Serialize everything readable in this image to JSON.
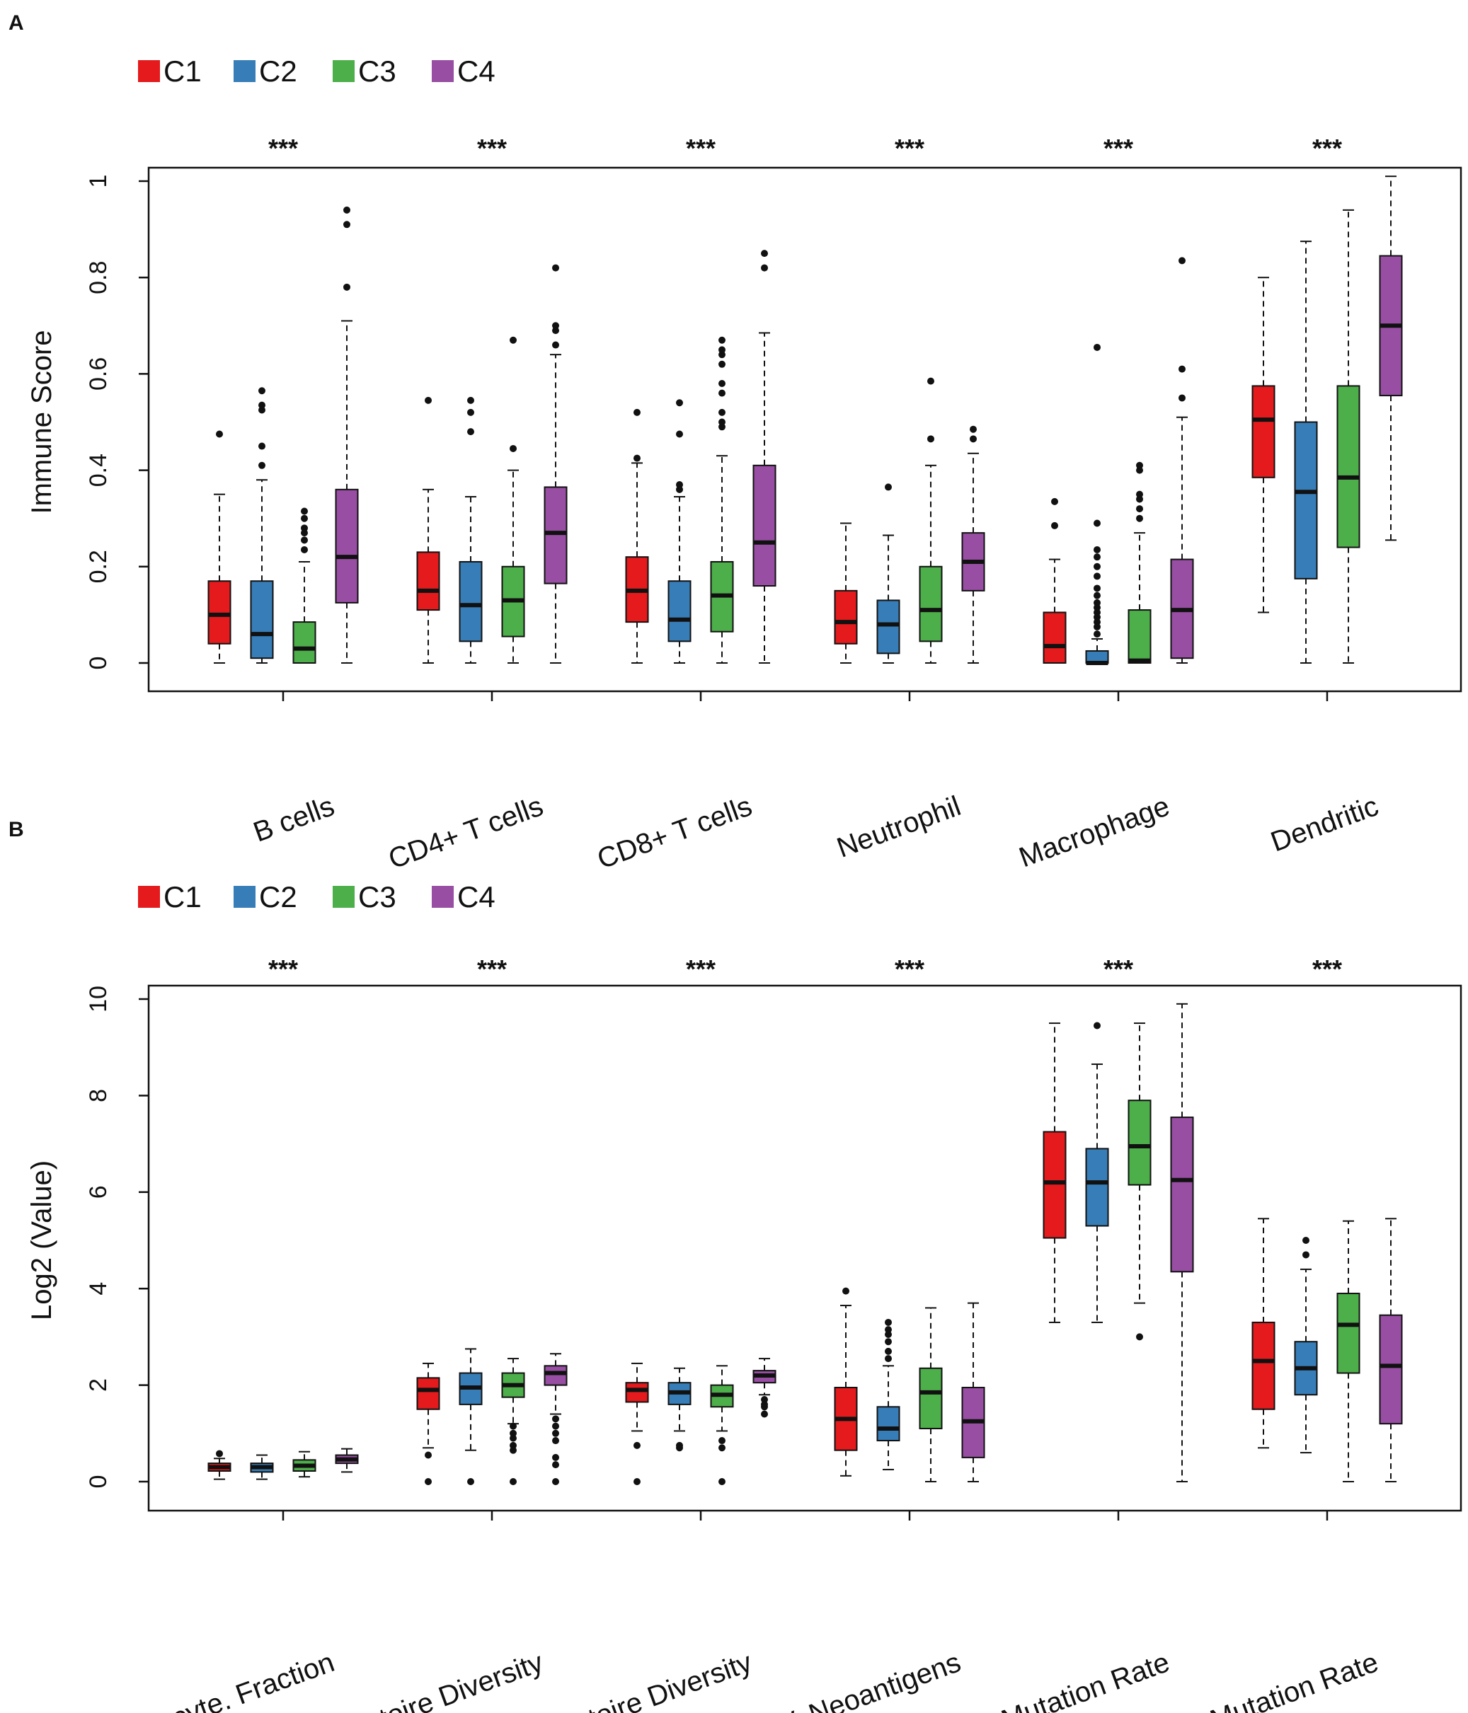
{
  "colors": {
    "C1": "#e41a1c",
    "C2": "#377eb8",
    "C3": "#4daf4a",
    "C4": "#984ea3"
  },
  "chart_data": [
    {
      "type": "box",
      "panel": "A",
      "ylabel": "Immune Score",
      "ylim": [
        0,
        1
      ],
      "yticks": [
        "0",
        "0.2",
        "0.4",
        "0.6",
        "0.8",
        "1"
      ],
      "ytick_values": [
        0,
        0.2,
        0.4,
        0.6,
        0.8,
        1
      ],
      "legend": [
        "C1",
        "C2",
        "C3",
        "C4"
      ],
      "categories": [
        "B cells",
        "CD4+ T cells",
        "CD8+ T cells",
        "Neutrophil",
        "Macrophage",
        "Dendritic"
      ],
      "significance": [
        "***",
        "***",
        "***",
        "***",
        "***",
        "***"
      ],
      "series": [
        {
          "name": "C1",
          "boxes": [
            {
              "min": 0,
              "q1": 0.04,
              "median": 0.1,
              "q3": 0.17,
              "max": 0.35,
              "outliers": [
                0.475
              ]
            },
            {
              "min": 0,
              "q1": 0.11,
              "median": 0.15,
              "q3": 0.23,
              "max": 0.36,
              "outliers": [
                0.545
              ]
            },
            {
              "min": 0,
              "q1": 0.085,
              "median": 0.15,
              "q3": 0.22,
              "max": 0.415,
              "outliers": [
                0.425,
                0.52
              ]
            },
            {
              "min": 0,
              "q1": 0.04,
              "median": 0.085,
              "q3": 0.15,
              "max": 0.29,
              "outliers": []
            },
            {
              "min": 0,
              "q1": 0,
              "median": 0.035,
              "q3": 0.105,
              "max": 0.215,
              "outliers": [
                0.285,
                0.335
              ]
            },
            {
              "min": 0.105,
              "q1": 0.385,
              "median": 0.505,
              "q3": 0.575,
              "max": 0.8,
              "outliers": []
            }
          ]
        },
        {
          "name": "C2",
          "boxes": [
            {
              "min": 0,
              "q1": 0.01,
              "median": 0.06,
              "q3": 0.17,
              "max": 0.38,
              "outliers": [
                0.41,
                0.45,
                0.525,
                0.535,
                0.565
              ]
            },
            {
              "min": 0,
              "q1": 0.045,
              "median": 0.12,
              "q3": 0.21,
              "max": 0.345,
              "outliers": [
                0.48,
                0.52,
                0.545
              ]
            },
            {
              "min": 0,
              "q1": 0.045,
              "median": 0.09,
              "q3": 0.17,
              "max": 0.345,
              "outliers": [
                0.36,
                0.37,
                0.475,
                0.54
              ]
            },
            {
              "min": 0,
              "q1": 0.02,
              "median": 0.08,
              "q3": 0.13,
              "max": 0.265,
              "outliers": [
                0.365
              ]
            },
            {
              "min": 0,
              "q1": 0,
              "median": 0,
              "q3": 0.025,
              "max": 0.05,
              "outliers": [
                0.06,
                0.075,
                0.085,
                0.095,
                0.105,
                0.115,
                0.125,
                0.14,
                0.155,
                0.18,
                0.2,
                0.22,
                0.235,
                0.29,
                0.655
              ]
            },
            {
              "min": 0,
              "q1": 0.175,
              "median": 0.355,
              "q3": 0.5,
              "max": 0.875,
              "outliers": []
            }
          ]
        },
        {
          "name": "C3",
          "boxes": [
            {
              "min": 0,
              "q1": 0,
              "median": 0.03,
              "q3": 0.085,
              "max": 0.21,
              "outliers": [
                0.235,
                0.255,
                0.27,
                0.28,
                0.3,
                0.315
              ]
            },
            {
              "min": 0,
              "q1": 0.055,
              "median": 0.13,
              "q3": 0.2,
              "max": 0.4,
              "outliers": [
                0.445,
                0.67
              ]
            },
            {
              "min": 0,
              "q1": 0.065,
              "median": 0.14,
              "q3": 0.21,
              "max": 0.43,
              "outliers": [
                0.49,
                0.5,
                0.52,
                0.56,
                0.58,
                0.62,
                0.64,
                0.65,
                0.67
              ]
            },
            {
              "min": 0,
              "q1": 0.045,
              "median": 0.11,
              "q3": 0.2,
              "max": 0.41,
              "outliers": [
                0.465,
                0.585
              ]
            },
            {
              "min": 0,
              "q1": 0,
              "median": 0.005,
              "q3": 0.11,
              "max": 0.27,
              "outliers": [
                0.3,
                0.32,
                0.34,
                0.35,
                0.4,
                0.41
              ]
            },
            {
              "min": 0,
              "q1": 0.24,
              "median": 0.385,
              "q3": 0.575,
              "max": 0.94,
              "outliers": []
            }
          ]
        },
        {
          "name": "C4",
          "boxes": [
            {
              "min": 0,
              "q1": 0.125,
              "median": 0.22,
              "q3": 0.36,
              "max": 0.71,
              "outliers": [
                0.78,
                0.91,
                0.94
              ]
            },
            {
              "min": 0,
              "q1": 0.165,
              "median": 0.27,
              "q3": 0.365,
              "max": 0.64,
              "outliers": [
                0.66,
                0.69,
                0.7,
                0.82
              ]
            },
            {
              "min": 0,
              "q1": 0.16,
              "median": 0.25,
              "q3": 0.41,
              "max": 0.685,
              "outliers": [
                0.82,
                0.85
              ]
            },
            {
              "min": 0,
              "q1": 0.15,
              "median": 0.21,
              "q3": 0.27,
              "max": 0.435,
              "outliers": [
                0.465,
                0.485
              ]
            },
            {
              "min": 0,
              "q1": 0.01,
              "median": 0.11,
              "q3": 0.215,
              "max": 0.51,
              "outliers": [
                0.55,
                0.61,
                0.835
              ]
            },
            {
              "min": 0.255,
              "q1": 0.555,
              "median": 0.7,
              "q3": 0.845,
              "max": 1.01,
              "outliers": []
            }
          ]
        }
      ]
    },
    {
      "type": "box",
      "panel": "B",
      "ylabel": "Log2 (Value)",
      "ylim": [
        0,
        10
      ],
      "yticks": [
        "0",
        "2",
        "4",
        "6",
        "8",
        "10"
      ],
      "ytick_values": [
        0,
        2,
        4,
        6,
        8,
        10
      ],
      "legend": [
        "C1",
        "C2",
        "C3",
        "C4"
      ],
      "categories": [
        "Leukocyte. Fraction",
        "BCR. Repertoire Diversity",
        "TCR. Repertoire Diversity",
        "SNV. Neoantigens",
        "Silent. Mutation Rate",
        "Nonsilent. Mutation Rate"
      ],
      "significance": [
        "***",
        "***",
        "***",
        "***",
        "***",
        "***"
      ],
      "series": [
        {
          "name": "C1",
          "boxes": [
            {
              "min": 0.05,
              "q1": 0.22,
              "median": 0.3,
              "q3": 0.38,
              "max": 0.48,
              "outliers": [
                0.58
              ]
            },
            {
              "min": 0.7,
              "q1": 1.5,
              "median": 1.9,
              "q3": 2.15,
              "max": 2.45,
              "outliers": [
                0.55,
                0
              ]
            },
            {
              "min": 1.05,
              "q1": 1.65,
              "median": 1.9,
              "q3": 2.05,
              "max": 2.45,
              "outliers": [
                0.75,
                0
              ]
            },
            {
              "min": 0.12,
              "q1": 0.65,
              "median": 1.3,
              "q3": 1.95,
              "max": 3.65,
              "outliers": [
                3.95
              ]
            },
            {
              "min": 3.3,
              "q1": 5.05,
              "median": 6.2,
              "q3": 7.25,
              "max": 9.5,
              "outliers": []
            },
            {
              "min": 0.7,
              "q1": 1.5,
              "median": 2.5,
              "q3": 3.3,
              "max": 5.45,
              "outliers": []
            }
          ]
        },
        {
          "name": "C2",
          "boxes": [
            {
              "min": 0.05,
              "q1": 0.2,
              "median": 0.3,
              "q3": 0.38,
              "max": 0.55,
              "outliers": []
            },
            {
              "min": 0.65,
              "q1": 1.6,
              "median": 1.95,
              "q3": 2.25,
              "max": 2.75,
              "outliers": [
                0
              ]
            },
            {
              "min": 1.05,
              "q1": 1.6,
              "median": 1.85,
              "q3": 2.05,
              "max": 2.35,
              "outliers": [
                0.75,
                0.7
              ]
            },
            {
              "min": 0.25,
              "q1": 0.85,
              "median": 1.1,
              "q3": 1.55,
              "max": 2.4,
              "outliers": [
                2.55,
                2.7,
                2.9,
                3.05,
                3.15,
                3.3
              ]
            },
            {
              "min": 3.3,
              "q1": 5.3,
              "median": 6.2,
              "q3": 6.9,
              "max": 8.65,
              "outliers": [
                9.45
              ]
            },
            {
              "min": 0.6,
              "q1": 1.8,
              "median": 2.35,
              "q3": 2.9,
              "max": 4.4,
              "outliers": [
                4.7,
                5.0
              ]
            }
          ]
        },
        {
          "name": "C3",
          "boxes": [
            {
              "min": 0.1,
              "q1": 0.22,
              "median": 0.33,
              "q3": 0.45,
              "max": 0.62,
              "outliers": []
            },
            {
              "min": 1.2,
              "q1": 1.75,
              "median": 2.0,
              "q3": 2.25,
              "max": 2.55,
              "outliers": [
                1.15,
                1.0,
                0.9,
                0.75,
                0.65,
                0
              ]
            },
            {
              "min": 1.05,
              "q1": 1.55,
              "median": 1.8,
              "q3": 2.0,
              "max": 2.4,
              "outliers": [
                0.85,
                0.7,
                0
              ]
            },
            {
              "min": 0,
              "q1": 1.1,
              "median": 1.85,
              "q3": 2.35,
              "max": 3.6,
              "outliers": []
            },
            {
              "min": 3.7,
              "q1": 6.15,
              "median": 6.95,
              "q3": 7.9,
              "max": 9.5,
              "outliers": [
                3.0
              ]
            },
            {
              "min": 0,
              "q1": 2.25,
              "median": 3.25,
              "q3": 3.9,
              "max": 5.4,
              "outliers": []
            }
          ]
        },
        {
          "name": "C4",
          "boxes": [
            {
              "min": 0.2,
              "q1": 0.38,
              "median": 0.46,
              "q3": 0.55,
              "max": 0.68,
              "outliers": []
            },
            {
              "min": 1.4,
              "q1": 2.0,
              "median": 2.25,
              "q3": 2.4,
              "max": 2.65,
              "outliers": [
                1.3,
                1.15,
                1.0,
                0.85,
                0.5,
                0.35,
                0
              ]
            },
            {
              "min": 1.8,
              "q1": 2.05,
              "median": 2.2,
              "q3": 2.3,
              "max": 2.55,
              "outliers": [
                1.7,
                1.6,
                1.55,
                1.4
              ]
            },
            {
              "min": 0,
              "q1": 0.5,
              "median": 1.25,
              "q3": 1.95,
              "max": 3.7,
              "outliers": []
            },
            {
              "min": 0,
              "q1": 4.35,
              "median": 6.25,
              "q3": 7.55,
              "max": 9.9,
              "outliers": []
            },
            {
              "min": 0,
              "q1": 1.2,
              "median": 2.4,
              "q3": 3.45,
              "max": 5.45,
              "outliers": []
            }
          ]
        }
      ]
    }
  ]
}
